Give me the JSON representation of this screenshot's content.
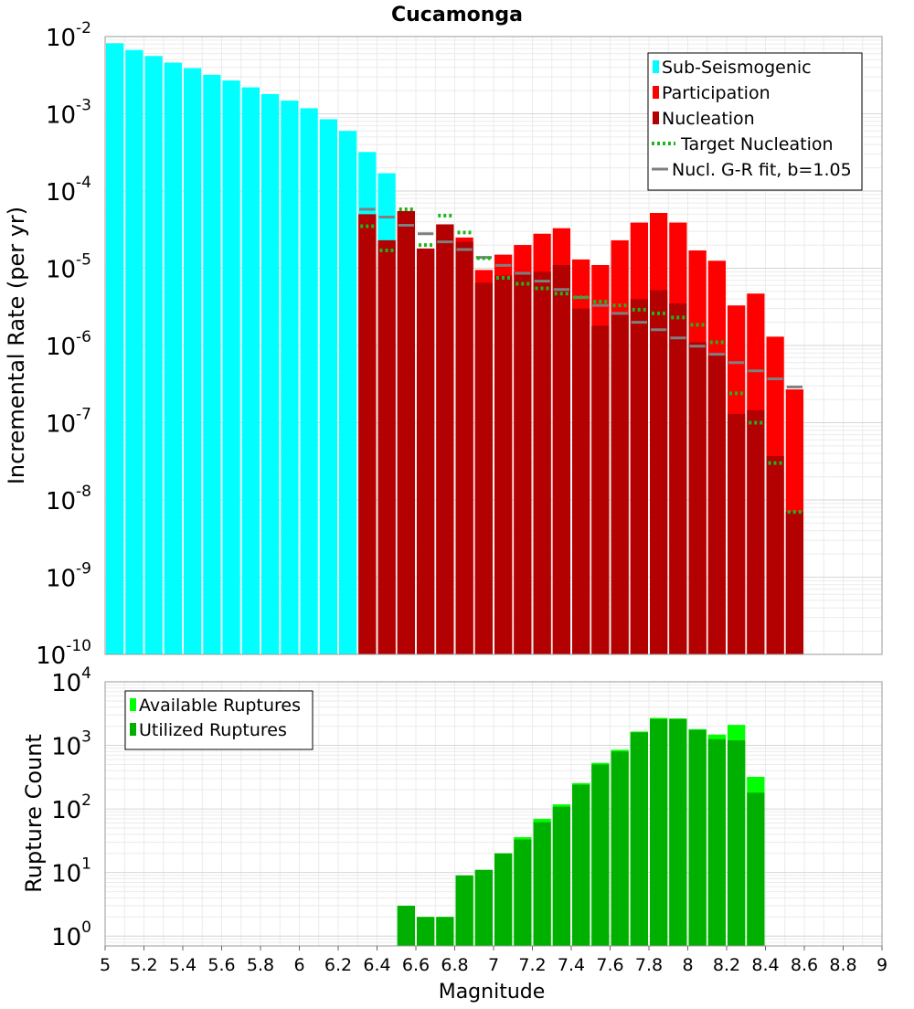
{
  "chart_data": [
    {
      "type": "bar",
      "title": "Cucamonga",
      "xlabel": "",
      "ylabel": "Incremental Rate (per yr)",
      "xlim": [
        5,
        9
      ],
      "ylim": [
        1e-10,
        0.01
      ],
      "yscale": "log",
      "ytick_exponents": [
        -2,
        -3,
        -4,
        -5,
        -6,
        -7,
        -8,
        -9,
        -10
      ],
      "grid": true,
      "legend_position": "top-right",
      "bin_width": 0.1,
      "legend": [
        {
          "label": "Sub-Seismogenic",
          "color": "#00ffff",
          "kind": "box"
        },
        {
          "label": "Participation",
          "color": "#ff0000",
          "kind": "box"
        },
        {
          "label": "Nucleation",
          "color": "#b30000",
          "kind": "box"
        },
        {
          "label": "Target Nucleation",
          "color": "#1fb51f",
          "kind": "dotted"
        },
        {
          "label": "Nucl. G-R fit, b=1.05",
          "color": "#7f7f7f",
          "kind": "line"
        }
      ],
      "series": [
        {
          "name": "Sub-Seismogenic",
          "color": "#00ffff",
          "x": [
            5.05,
            5.15,
            5.25,
            5.35,
            5.45,
            5.55,
            5.65,
            5.75,
            5.85,
            5.95,
            6.05,
            6.15,
            6.25,
            6.35,
            6.45
          ],
          "values": [
            0.0082,
            0.0067,
            0.0056,
            0.0046,
            0.0039,
            0.0032,
            0.0027,
            0.0022,
            0.0018,
            0.00148,
            0.00118,
            0.00085,
            0.0006,
            0.00032,
            0.00017
          ]
        },
        {
          "name": "Participation",
          "color": "#ff0000",
          "x": [
            6.35,
            6.45,
            6.55,
            6.65,
            6.75,
            6.85,
            6.95,
            7.05,
            7.15,
            7.25,
            7.35,
            7.45,
            7.55,
            7.65,
            7.75,
            7.85,
            7.95,
            8.05,
            8.15,
            8.25,
            8.35,
            8.45,
            8.55
          ],
          "values": [
            5e-05,
            2.3e-05,
            5.5e-05,
            1.8e-05,
            3.7e-05,
            2.5e-05,
            9.5e-06,
            1.5e-05,
            2e-05,
            2.8e-05,
            3.3e-05,
            1.3e-05,
            1.1e-05,
            2.3e-05,
            3.9e-05,
            5.2e-05,
            3.9e-05,
            1.7e-05,
            1.25e-05,
            3.3e-06,
            4.7e-06,
            1.3e-06,
            2.7e-07
          ]
        },
        {
          "name": "Nucleation",
          "color": "#b30000",
          "x": [
            6.35,
            6.45,
            6.55,
            6.65,
            6.75,
            6.85,
            6.95,
            7.05,
            7.15,
            7.25,
            7.35,
            7.45,
            7.55,
            7.65,
            7.75,
            7.85,
            7.95,
            8.05,
            8.15,
            8.25,
            8.35,
            8.45,
            8.55
          ],
          "values": [
            5e-05,
            2.3e-05,
            5.5e-05,
            1.8e-05,
            3.7e-05,
            2.2e-05,
            6.5e-06,
            8e-06,
            9e-06,
            9e-06,
            1.1e-05,
            3e-06,
            1.8e-06,
            2.5e-06,
            4e-06,
            5.2e-06,
            3.5e-06,
            1.1e-06,
            7.5e-07,
            1.3e-07,
            1.45e-07,
            3.7e-08,
            7e-09
          ]
        },
        {
          "name": "Target Nucleation",
          "color": "#1fb51f",
          "x": [
            6.35,
            6.45,
            6.55,
            6.65,
            6.75,
            6.85,
            6.95,
            7.05,
            7.15,
            7.25,
            7.35,
            7.45,
            7.55,
            7.65,
            7.75,
            7.85,
            7.95,
            8.05,
            8.15,
            8.25,
            8.35,
            8.45,
            8.55
          ],
          "values": [
            3.5e-05,
            1.7e-05,
            5.8e-05,
            2e-05,
            4.8e-05,
            2.9e-05,
            1.35e-05,
            7.5e-06,
            6.3e-06,
            5.5e-06,
            4.7e-06,
            4.2e-06,
            3.7e-06,
            3.3e-06,
            2.9e-06,
            2.6e-06,
            2.3e-06,
            1.85e-06,
            1.1e-06,
            2.4e-07,
            1e-07,
            3e-08,
            7e-09
          ]
        },
        {
          "name": "Nucl. G-R fit, b=1.05",
          "color": "#7f7f7f",
          "x": [
            6.35,
            6.45,
            6.55,
            6.65,
            6.75,
            6.85,
            6.95,
            7.05,
            7.15,
            7.25,
            7.35,
            7.45,
            7.55,
            7.65,
            7.75,
            7.85,
            7.95,
            8.05,
            8.15,
            8.25,
            8.35,
            8.45,
            8.55
          ],
          "values": [
            5.8e-05,
            4.6e-05,
            3.6e-05,
            2.8e-05,
            2.2e-05,
            1.75e-05,
            1.38e-05,
            1.09e-05,
            8.6e-06,
            6.8e-06,
            5.3e-06,
            4.2e-06,
            3.3e-06,
            2.6e-06,
            2e-06,
            1.6e-06,
            1.25e-06,
            9.8e-07,
            7.7e-07,
            6e-07,
            4.7e-07,
            3.7e-07,
            2.9e-07
          ]
        }
      ]
    },
    {
      "type": "bar",
      "title": "",
      "xlabel": "Magnitude",
      "ylabel": "Rupture Count",
      "xlim": [
        5,
        9
      ],
      "ylim": [
        0.7,
        10000
      ],
      "yscale": "log",
      "ytick_exponents": [
        0,
        1,
        2,
        3,
        4
      ],
      "xticks": [
        "5",
        "5.2",
        "5.4",
        "5.6",
        "5.8",
        "6",
        "6.2",
        "6.4",
        "6.6",
        "6.8",
        "7",
        "7.2",
        "7.4",
        "7.6",
        "7.8",
        "8",
        "8.2",
        "8.4",
        "8.6",
        "8.8",
        "9"
      ],
      "grid": true,
      "legend_position": "top-left",
      "bin_width": 0.1,
      "legend": [
        {
          "label": "Available Ruptures",
          "color": "#00ff00",
          "kind": "box"
        },
        {
          "label": "Utilized Ruptures",
          "color": "#00b000",
          "kind": "box"
        }
      ],
      "series": [
        {
          "name": "Available Ruptures",
          "color": "#00ff00",
          "x": [
            6.55,
            6.65,
            6.75,
            6.85,
            6.95,
            7.05,
            7.15,
            7.25,
            7.35,
            7.45,
            7.55,
            7.65,
            7.75,
            7.85,
            7.95,
            8.05,
            8.15,
            8.25,
            8.35
          ],
          "values": [
            3,
            2,
            2,
            9,
            11,
            20,
            36,
            70,
            118,
            255,
            530,
            850,
            1650,
            2700,
            2650,
            1800,
            1480,
            2100,
            320
          ]
        },
        {
          "name": "Utilized Ruptures",
          "color": "#00b000",
          "x": [
            6.55,
            6.65,
            6.75,
            6.85,
            6.95,
            7.05,
            7.15,
            7.25,
            7.35,
            7.45,
            7.55,
            7.65,
            7.75,
            7.85,
            7.95,
            8.05,
            8.15,
            8.25,
            8.35
          ],
          "values": [
            3,
            2,
            2,
            9,
            11,
            20,
            33,
            62,
            108,
            240,
            500,
            800,
            1600,
            2600,
            2600,
            1750,
            1250,
            1200,
            180
          ]
        }
      ]
    }
  ]
}
